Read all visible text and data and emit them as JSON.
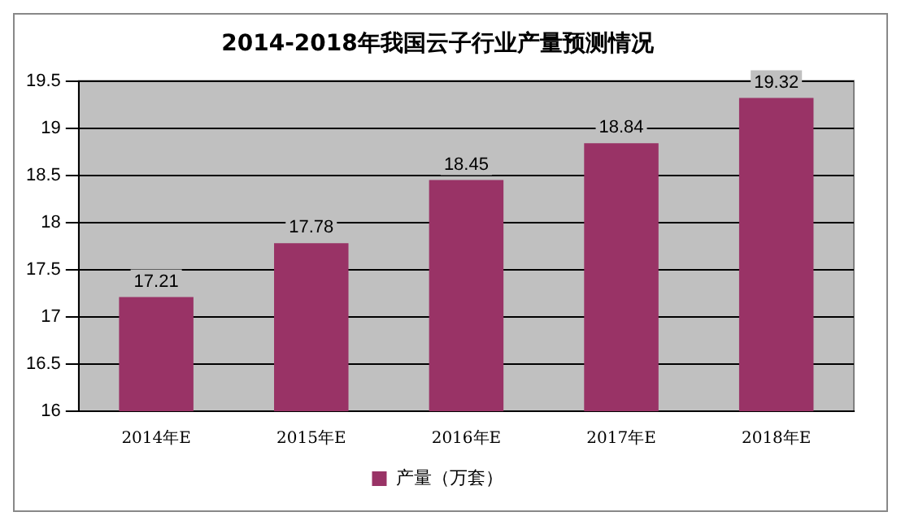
{
  "chart_data": {
    "type": "bar",
    "title": "2014-2018年我国云子行业产量预测情况",
    "categories": [
      "2014年E",
      "2015年E",
      "2016年E",
      "2017年E",
      "2018年E"
    ],
    "series": [
      {
        "name": "产量（万套）",
        "color": "#993366",
        "values": [
          17.21,
          17.78,
          18.45,
          18.84,
          19.32
        ]
      }
    ],
    "ylim": [
      16,
      19.5
    ],
    "yticks": [
      16,
      16.5,
      17,
      17.5,
      18,
      18.5,
      19,
      19.5
    ],
    "grid": "y",
    "legend": "bottom",
    "data_labels": true
  }
}
